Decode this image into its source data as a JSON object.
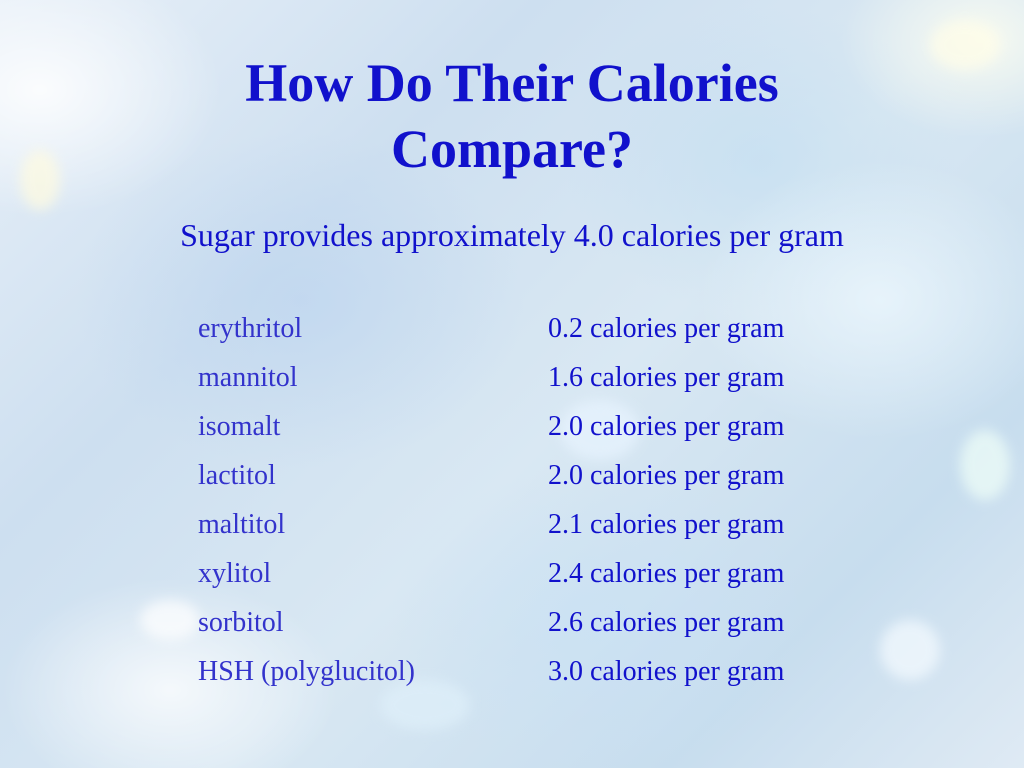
{
  "slide": {
    "title_line1": "How Do Their Calories",
    "title_line2": "Compare?",
    "subtitle": "Sugar provides approximately 4.0 calories per gram",
    "rows": [
      {
        "name": "erythritol",
        "value": "0.2 calories per gram"
      },
      {
        "name": "mannitol",
        "value": "1.6 calories per gram"
      },
      {
        "name": "isomalt",
        "value": "2.0 calories per gram"
      },
      {
        "name": "lactitol",
        "value": "2.0 calories per gram"
      },
      {
        "name": "maltitol",
        "value": "2.1 calories per gram"
      },
      {
        "name": "xylitol",
        "value": "2.4 calories per gram"
      },
      {
        "name": "sorbitol",
        "value": "2.6 calories per gram"
      },
      {
        "name": "HSH (polyglucitol)",
        "value": "3.0 calories per gram"
      }
    ]
  },
  "colors": {
    "title": "#1111cc",
    "item_name": "#3333cc",
    "item_value": "#1111cc"
  }
}
